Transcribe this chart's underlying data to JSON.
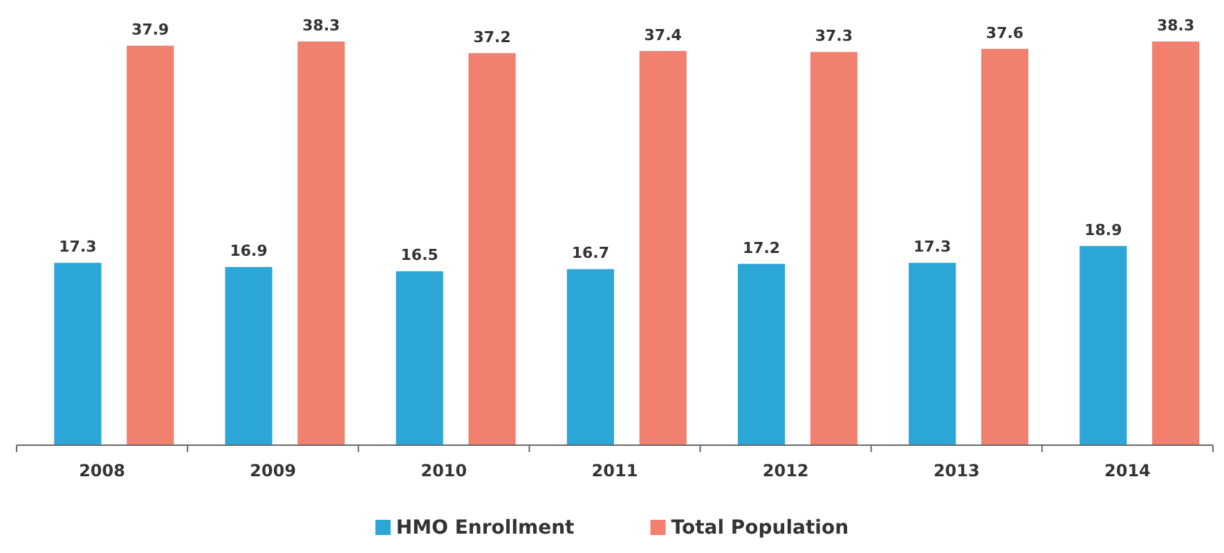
{
  "chart_data": {
    "type": "bar",
    "categories": [
      "2008",
      "2009",
      "2010",
      "2011",
      "2012",
      "2013",
      "2014"
    ],
    "series": [
      {
        "name": "HMO Enrollment",
        "color": "#2ba6d6",
        "values": [
          17.3,
          16.9,
          16.5,
          16.7,
          17.2,
          17.3,
          18.9
        ]
      },
      {
        "name": "Total Population",
        "color": "#f2806f",
        "values": [
          37.9,
          38.3,
          37.2,
          37.4,
          37.3,
          37.6,
          38.3
        ]
      }
    ],
    "data_labels": true,
    "legend": "bottom",
    "grid": false
  }
}
